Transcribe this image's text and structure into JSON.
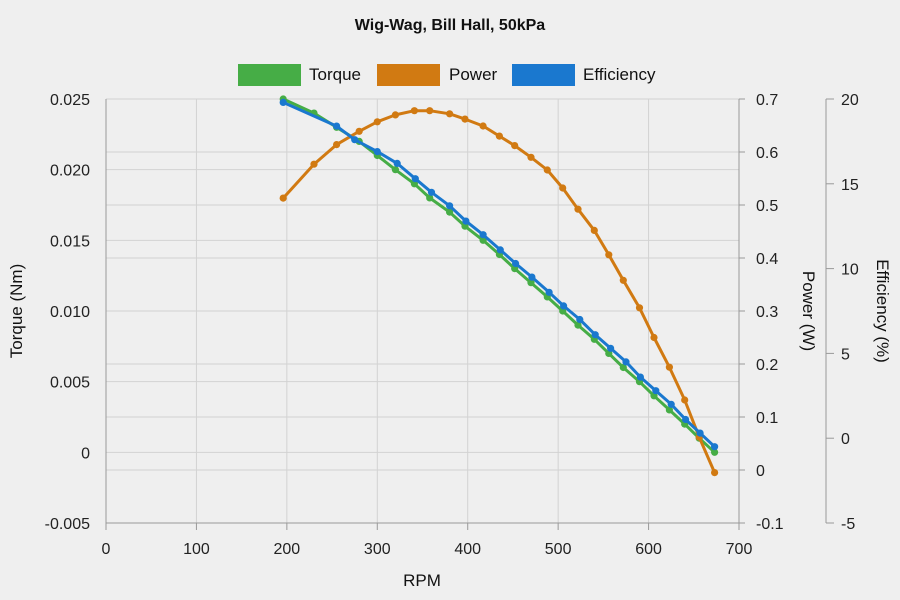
{
  "chart_data": {
    "type": "line",
    "title": "Wig-Wag, Bill Hall, 50kPa",
    "xlabel": "RPM",
    "xlim": [
      0,
      700
    ],
    "xticks": [
      "0",
      "100",
      "200",
      "300",
      "400",
      "500",
      "600",
      "700"
    ],
    "axes": {
      "torque": {
        "label": "Torque (Nm)",
        "lim": [
          -0.005,
          0.025
        ],
        "ticks": [
          "-0.005",
          "0",
          "0.005",
          "0.010",
          "0.015",
          "0.020",
          "0.025"
        ]
      },
      "power": {
        "label": "Power (W)",
        "lim": [
          -0.1,
          0.7
        ],
        "ticks": [
          "-0.1",
          "0",
          "0.1",
          "0.2",
          "0.3",
          "0.4",
          "0.5",
          "0.6",
          "0.7"
        ]
      },
      "efficiency": {
        "label": "Efficiency (%)",
        "lim": [
          -5,
          20
        ],
        "ticks": [
          "-5",
          "0",
          "5",
          "10",
          "15",
          "20"
        ]
      }
    },
    "series": [
      {
        "name": "Torque",
        "axis": "torque",
        "color": "#46ad46",
        "x": [
          196,
          230,
          255,
          280,
          300,
          320,
          341,
          358,
          380,
          397,
          417,
          435,
          452,
          470,
          488,
          505,
          522,
          540,
          556,
          572,
          590,
          606,
          623,
          640,
          656,
          673
        ],
        "y": [
          0.025,
          0.024,
          0.023,
          0.022,
          0.021,
          0.02,
          0.019,
          0.018,
          0.017,
          0.016,
          0.015,
          0.014,
          0.013,
          0.012,
          0.011,
          0.01,
          0.009,
          0.008,
          0.007,
          0.006,
          0.005,
          0.004,
          0.003,
          0.002,
          0.001,
          0.0
        ]
      },
      {
        "name": "Power",
        "axis": "power",
        "color": "#d17a12",
        "x": [
          196,
          230,
          255,
          280,
          300,
          320,
          341,
          358,
          380,
          397,
          417,
          435,
          452,
          470,
          488,
          505,
          522,
          540,
          556,
          572,
          590,
          606,
          623,
          640,
          656,
          673
        ],
        "y": [
          0.513,
          0.577,
          0.614,
          0.639,
          0.657,
          0.67,
          0.678,
          0.678,
          0.672,
          0.662,
          0.649,
          0.63,
          0.612,
          0.59,
          0.566,
          0.532,
          0.492,
          0.452,
          0.406,
          0.358,
          0.306,
          0.25,
          0.194,
          0.132,
          0.062,
          -0.005
        ]
      },
      {
        "name": "Efficiency",
        "axis": "efficiency",
        "color": "#1a78cf",
        "x": [
          196,
          255,
          275,
          300,
          322,
          342,
          360,
          380,
          398,
          417,
          436,
          453,
          471,
          490,
          506,
          524,
          541,
          558,
          575,
          591,
          608,
          625,
          641,
          657,
          673
        ],
        "y": [
          19.8,
          18.4,
          17.6,
          16.9,
          16.2,
          15.3,
          14.5,
          13.7,
          12.8,
          12.0,
          11.1,
          10.3,
          9.5,
          8.6,
          7.8,
          7.0,
          6.1,
          5.3,
          4.5,
          3.6,
          2.8,
          2.0,
          1.1,
          0.3,
          -0.5
        ]
      }
    ]
  }
}
